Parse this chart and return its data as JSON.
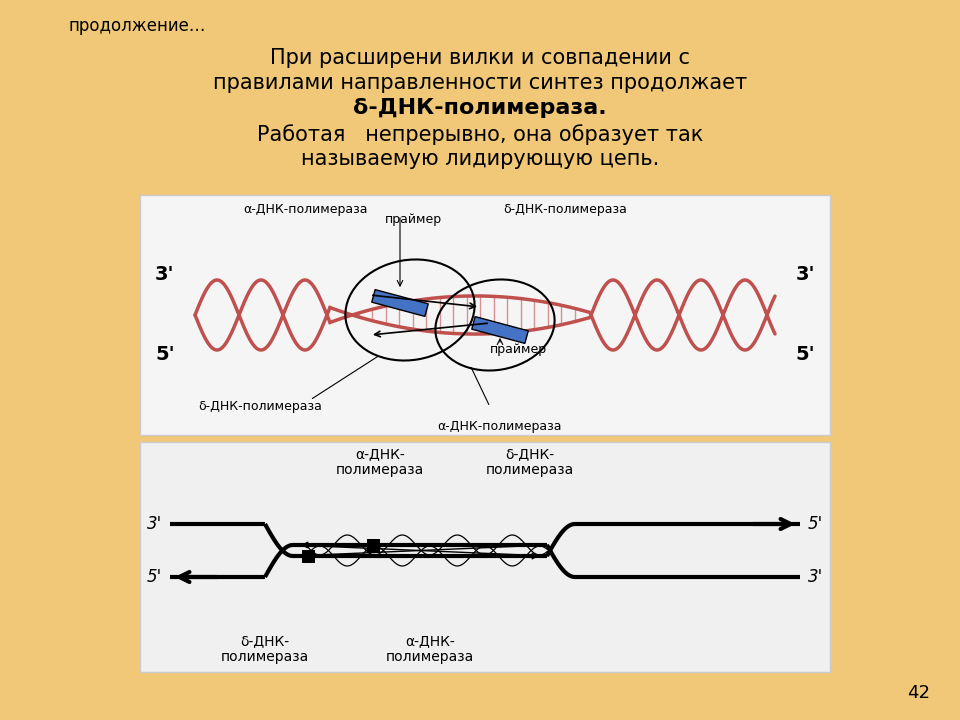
{
  "background_color": "#f0c878",
  "top_label": "продолжение…",
  "main_text_line1": "При расширени вилки и совпадении с",
  "main_text_line2": "правилами направленности синтез продолжает",
  "main_text_bold": "δ-ДНК-полимераза.",
  "main_text_line4": "Работая   непрерывно, она образует так",
  "main_text_line5": "называемую лидирующую цепь.",
  "page_number": "42",
  "dna_helix_color": "#c0504d",
  "primer_color": "#4472c4",
  "diag1_bg": "#f5f5f5",
  "diag2_bg": "#f0f0f0",
  "label_alpha_top_left": "α-ДНК-полимераза",
  "label_delta_top_right": "δ-ДНК-полимераза",
  "label_primer_top": "праймер",
  "label_primer_bottom": "праймер",
  "label_delta_bottom_left": "δ-ДНК-полимераза",
  "label_alpha_bottom_right": "α-ДНК-полимераза",
  "diag2_label_alpha_top": "α-ДНК-\nполимераза",
  "diag2_label_delta_top": "δ-ДНК-\nполимераза",
  "diag2_label_delta_bottom": "δ-ДНК-\nполимераза",
  "diag2_label_alpha_bottom": "α-ДНК-\nполимераза"
}
